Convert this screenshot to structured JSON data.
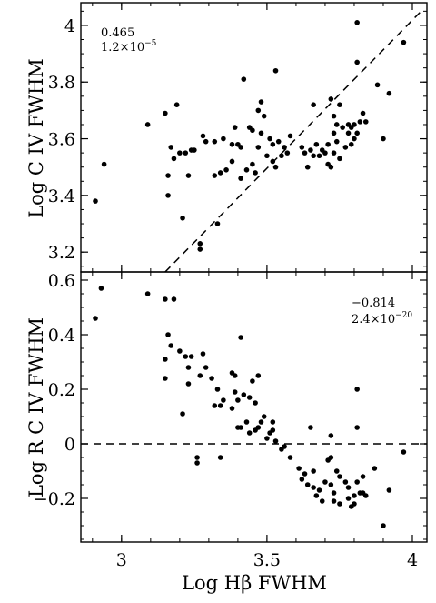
{
  "chart_data": [
    {
      "type": "scatter",
      "title": "",
      "xlabel": "",
      "ylabel": "Log C IV FWHM",
      "xlim": [
        2.86,
        4.05
      ],
      "ylim": [
        3.13,
        4.08
      ],
      "xticks": [
        "3",
        "3.5",
        "4"
      ],
      "yticks": [
        "3.2",
        "3.4",
        "3.6",
        "3.8",
        "4"
      ],
      "annotation": {
        "r": "0.465",
        "p_mantissa": "1.2×10",
        "p_exp": "−5"
      },
      "reference_line": {
        "style": "dashed",
        "from": [
          3.15,
          3.13
        ],
        "to": [
          4.03,
          4.05
        ]
      },
      "points": [
        [
          2.91,
          3.38
        ],
        [
          2.94,
          3.51
        ],
        [
          3.09,
          3.65
        ],
        [
          3.15,
          3.69
        ],
        [
          3.16,
          3.47
        ],
        [
          3.16,
          3.4
        ],
        [
          3.17,
          3.57
        ],
        [
          3.18,
          3.53
        ],
        [
          3.19,
          3.72
        ],
        [
          3.2,
          3.55
        ],
        [
          3.21,
          3.32
        ],
        [
          3.22,
          3.55
        ],
        [
          3.23,
          3.47
        ],
        [
          3.24,
          3.56
        ],
        [
          3.25,
          3.56
        ],
        [
          3.27,
          3.23
        ],
        [
          3.27,
          3.21
        ],
        [
          3.28,
          3.61
        ],
        [
          3.29,
          3.59
        ],
        [
          3.32,
          3.47
        ],
        [
          3.32,
          3.59
        ],
        [
          3.33,
          3.3
        ],
        [
          3.34,
          3.48
        ],
        [
          3.35,
          3.6
        ],
        [
          3.36,
          3.49
        ],
        [
          3.38,
          3.52
        ],
        [
          3.38,
          3.58
        ],
        [
          3.39,
          3.64
        ],
        [
          3.4,
          3.58
        ],
        [
          3.41,
          3.46
        ],
        [
          3.41,
          3.57
        ],
        [
          3.42,
          3.81
        ],
        [
          3.43,
          3.49
        ],
        [
          3.44,
          3.64
        ],
        [
          3.45,
          3.51
        ],
        [
          3.45,
          3.63
        ],
        [
          3.46,
          3.48
        ],
        [
          3.47,
          3.57
        ],
        [
          3.47,
          3.7
        ],
        [
          3.48,
          3.62
        ],
        [
          3.48,
          3.73
        ],
        [
          3.49,
          3.68
        ],
        [
          3.5,
          3.54
        ],
        [
          3.51,
          3.6
        ],
        [
          3.52,
          3.58
        ],
        [
          3.52,
          3.52
        ],
        [
          3.53,
          3.84
        ],
        [
          3.53,
          3.5
        ],
        [
          3.54,
          3.59
        ],
        [
          3.55,
          3.54
        ],
        [
          3.56,
          3.57
        ],
        [
          3.57,
          3.55
        ],
        [
          3.58,
          3.61
        ],
        [
          3.62,
          3.57
        ],
        [
          3.63,
          3.55
        ],
        [
          3.64,
          3.5
        ],
        [
          3.65,
          3.56
        ],
        [
          3.66,
          3.72
        ],
        [
          3.66,
          3.54
        ],
        [
          3.67,
          3.58
        ],
        [
          3.68,
          3.54
        ],
        [
          3.69,
          3.56
        ],
        [
          3.7,
          3.55
        ],
        [
          3.71,
          3.51
        ],
        [
          3.71,
          3.58
        ],
        [
          3.72,
          3.5
        ],
        [
          3.72,
          3.74
        ],
        [
          3.73,
          3.62
        ],
        [
          3.73,
          3.68
        ],
        [
          3.73,
          3.55
        ],
        [
          3.74,
          3.65
        ],
        [
          3.74,
          3.59
        ],
        [
          3.75,
          3.53
        ],
        [
          3.75,
          3.72
        ],
        [
          3.76,
          3.64
        ],
        [
          3.77,
          3.57
        ],
        [
          3.78,
          3.65
        ],
        [
          3.78,
          3.62
        ],
        [
          3.79,
          3.58
        ],
        [
          3.79,
          3.64
        ],
        [
          3.8,
          3.6
        ],
        [
          3.8,
          3.65
        ],
        [
          3.81,
          4.01
        ],
        [
          3.81,
          3.87
        ],
        [
          3.81,
          3.62
        ],
        [
          3.82,
          3.66
        ],
        [
          3.83,
          3.69
        ],
        [
          3.84,
          3.66
        ],
        [
          3.88,
          3.79
        ],
        [
          3.9,
          3.6
        ],
        [
          3.92,
          3.76
        ],
        [
          3.97,
          3.94
        ]
      ]
    },
    {
      "type": "scatter",
      "title": "",
      "xlabel": "Log Hβ FWHM",
      "ylabel": "Log R C IV FWHM",
      "xlim": [
        2.86,
        4.05
      ],
      "ylim": [
        -0.36,
        0.63
      ],
      "xticks": [
        "3",
        "3.5",
        "4"
      ],
      "yticks": [
        "0.6",
        "0.4",
        "0.2",
        "0",
        "−0.2"
      ],
      "annotation": {
        "r": "−0.814",
        "p_mantissa": "2.4×10",
        "p_exp": "−20"
      },
      "reference_line": {
        "style": "dashed",
        "y": 0
      },
      "points": [
        [
          2.91,
          0.46
        ],
        [
          2.93,
          0.57
        ],
        [
          3.09,
          0.55
        ],
        [
          3.15,
          0.53
        ],
        [
          3.15,
          0.31
        ],
        [
          3.15,
          0.24
        ],
        [
          3.16,
          0.4
        ],
        [
          3.17,
          0.36
        ],
        [
          3.18,
          0.53
        ],
        [
          3.2,
          0.34
        ],
        [
          3.21,
          0.11
        ],
        [
          3.22,
          0.32
        ],
        [
          3.23,
          0.22
        ],
        [
          3.23,
          0.28
        ],
        [
          3.24,
          0.32
        ],
        [
          3.26,
          -0.05
        ],
        [
          3.26,
          -0.07
        ],
        [
          3.27,
          0.25
        ],
        [
          3.28,
          0.33
        ],
        [
          3.29,
          0.28
        ],
        [
          3.31,
          0.24
        ],
        [
          3.32,
          0.14
        ],
        [
          3.33,
          0.2
        ],
        [
          3.34,
          -0.05
        ],
        [
          3.34,
          0.14
        ],
        [
          3.35,
          0.16
        ],
        [
          3.38,
          0.26
        ],
        [
          3.38,
          0.13
        ],
        [
          3.39,
          0.25
        ],
        [
          3.39,
          0.19
        ],
        [
          3.4,
          0.06
        ],
        [
          3.4,
          0.16
        ],
        [
          3.41,
          0.39
        ],
        [
          3.41,
          0.06
        ],
        [
          3.42,
          0.18
        ],
        [
          3.43,
          0.08
        ],
        [
          3.44,
          0.17
        ],
        [
          3.44,
          0.04
        ],
        [
          3.45,
          0.23
        ],
        [
          3.46,
          0.05
        ],
        [
          3.46,
          0.15
        ],
        [
          3.47,
          0.06
        ],
        [
          3.47,
          0.25
        ],
        [
          3.48,
          0.08
        ],
        [
          3.49,
          0.1
        ],
        [
          3.5,
          0.02
        ],
        [
          3.51,
          0.04
        ],
        [
          3.52,
          0.05
        ],
        [
          3.52,
          0.08
        ],
        [
          3.53,
          0.01
        ],
        [
          3.55,
          -0.02
        ],
        [
          3.56,
          -0.01
        ],
        [
          3.58,
          -0.05
        ],
        [
          3.61,
          -0.09
        ],
        [
          3.62,
          -0.13
        ],
        [
          3.63,
          -0.11
        ],
        [
          3.64,
          -0.15
        ],
        [
          3.65,
          0.06
        ],
        [
          3.66,
          -0.1
        ],
        [
          3.66,
          -0.16
        ],
        [
          3.67,
          -0.19
        ],
        [
          3.68,
          -0.17
        ],
        [
          3.69,
          -0.21
        ],
        [
          3.7,
          -0.14
        ],
        [
          3.71,
          -0.06
        ],
        [
          3.72,
          0.03
        ],
        [
          3.72,
          -0.15
        ],
        [
          3.72,
          -0.05
        ],
        [
          3.73,
          -0.18
        ],
        [
          3.73,
          -0.21
        ],
        [
          3.74,
          -0.1
        ],
        [
          3.75,
          -0.12
        ],
        [
          3.75,
          -0.22
        ],
        [
          3.77,
          -0.14
        ],
        [
          3.78,
          -0.16
        ],
        [
          3.78,
          -0.2
        ],
        [
          3.79,
          -0.23
        ],
        [
          3.8,
          -0.19
        ],
        [
          3.8,
          -0.22
        ],
        [
          3.81,
          0.06
        ],
        [
          3.81,
          0.2
        ],
        [
          3.81,
          -0.14
        ],
        [
          3.82,
          -0.18
        ],
        [
          3.83,
          -0.18
        ],
        [
          3.83,
          -0.12
        ],
        [
          3.84,
          -0.19
        ],
        [
          3.87,
          -0.09
        ],
        [
          3.9,
          -0.3
        ],
        [
          3.92,
          -0.17
        ],
        [
          3.97,
          -0.03
        ]
      ]
    }
  ]
}
